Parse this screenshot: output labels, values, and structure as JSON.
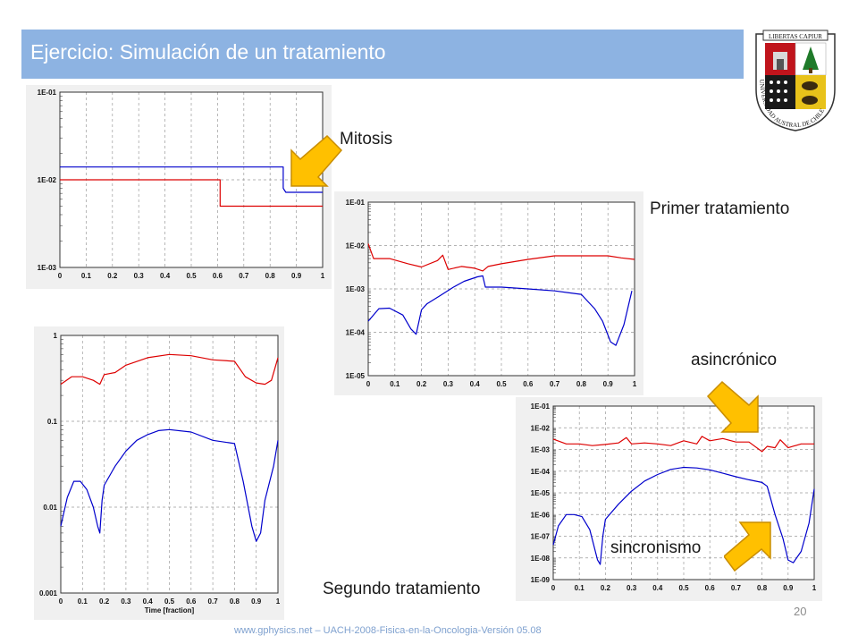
{
  "slide": {
    "title": "Ejercicio: Simulación de un tratamiento",
    "page_number": "20",
    "footer": "www.gphysics.net – UACH-2008-Fisica-en-la-Oncologia-Versión 05.08",
    "accent_color": "#8db3e2"
  },
  "crest": {
    "motto": "LIBERTAS CAPIUR",
    "ring_text": "UNIVERSIDAD AUSTRAL DE CHILE"
  },
  "labels": {
    "mitosis": "Mitosis",
    "primer": "Primer tratamiento",
    "asincronico": "asincrónico",
    "sincronismo": "sincronismo",
    "segundo": "Segundo tratamiento"
  },
  "arrows": {
    "color": "#ffc000"
  },
  "chart_data": [
    {
      "type": "line",
      "scale": "log",
      "ylim": [
        0.001,
        0.1
      ],
      "xlim": [
        0,
        1
      ],
      "y_ticks": [
        "1E-01",
        "1E-02",
        "1E-03"
      ],
      "x_ticks": [
        "0",
        "0.1",
        "0.2",
        "0.3",
        "0.4",
        "0.5",
        "0.6",
        "0.7",
        "0.8",
        "0.9",
        "1"
      ],
      "grid": true,
      "series": [
        {
          "color": "#0000cc",
          "x": [
            0,
            0.85,
            0.85,
            0.86,
            1.0
          ],
          "y": [
            0.014,
            0.014,
            0.008,
            0.0072,
            0.0072
          ]
        },
        {
          "color": "#dd0000",
          "x": [
            0,
            0.61,
            0.61,
            1.0
          ],
          "y": [
            0.01,
            0.01,
            0.005,
            0.005
          ]
        }
      ]
    },
    {
      "type": "line",
      "scale": "log",
      "ylim": [
        1e-05,
        0.1
      ],
      "xlim": [
        0,
        1
      ],
      "y_ticks": [
        "1E-01",
        "1E-02",
        "1E-03",
        "1E-04",
        "1E-05"
      ],
      "x_ticks": [
        "0",
        "0.1",
        "0.2",
        "0.3",
        "0.4",
        "0.5",
        "0.6",
        "0.7",
        "0.8",
        "0.9",
        "1"
      ],
      "grid": true,
      "series": [
        {
          "color": "#dd0000",
          "x": [
            0,
            0.02,
            0.08,
            0.15,
            0.2,
            0.26,
            0.28,
            0.3,
            0.35,
            0.4,
            0.43,
            0.45,
            0.5,
            0.6,
            0.7,
            0.8,
            0.9,
            0.95,
            1.0
          ],
          "y": [
            0.011,
            0.005,
            0.005,
            0.0038,
            0.0032,
            0.0045,
            0.006,
            0.0028,
            0.0033,
            0.003,
            0.0026,
            0.0033,
            0.0038,
            0.0048,
            0.0058,
            0.0058,
            0.0058,
            0.0052,
            0.0048
          ]
        },
        {
          "color": "#0000cc",
          "x": [
            0,
            0.04,
            0.08,
            0.13,
            0.16,
            0.18,
            0.2,
            0.22,
            0.27,
            0.32,
            0.36,
            0.41,
            0.43,
            0.44,
            0.5,
            0.6,
            0.7,
            0.8,
            0.85,
            0.88,
            0.91,
            0.93,
            0.96,
            0.99
          ],
          "y": [
            0.00018,
            0.00035,
            0.00036,
            0.00025,
            0.00012,
            9e-05,
            0.00033,
            0.00045,
            0.0007,
            0.0011,
            0.0015,
            0.0019,
            0.002,
            0.0011,
            0.0011,
            0.001,
            0.0009,
            0.00075,
            0.00035,
            0.00018,
            6e-05,
            5e-05,
            0.00015,
            0.0009
          ]
        }
      ]
    },
    {
      "type": "line",
      "scale": "log",
      "ylim": [
        0.001,
        1
      ],
      "xlim": [
        0,
        1
      ],
      "y_ticks": [
        "1",
        "0.1",
        "0.01",
        "0.001"
      ],
      "x_ticks": [
        "0",
        "0.1",
        "0.2",
        "0.3",
        "0.4",
        "0.5",
        "0.6",
        "0.7",
        "0.8",
        "0.9",
        "1"
      ],
      "xlabel": "Time [fraction]",
      "grid": true,
      "series": [
        {
          "color": "#dd0000",
          "x": [
            0,
            0.05,
            0.1,
            0.15,
            0.18,
            0.2,
            0.25,
            0.3,
            0.4,
            0.5,
            0.6,
            0.7,
            0.8,
            0.85,
            0.9,
            0.94,
            0.97,
            1.0
          ],
          "y": [
            0.27,
            0.33,
            0.33,
            0.3,
            0.27,
            0.35,
            0.37,
            0.45,
            0.55,
            0.6,
            0.58,
            0.52,
            0.5,
            0.33,
            0.28,
            0.27,
            0.3,
            0.55
          ]
        },
        {
          "color": "#0000cc",
          "x": [
            0,
            0.03,
            0.06,
            0.09,
            0.12,
            0.15,
            0.17,
            0.18,
            0.19,
            0.2,
            0.25,
            0.3,
            0.35,
            0.4,
            0.45,
            0.5,
            0.6,
            0.7,
            0.8,
            0.84,
            0.88,
            0.9,
            0.92,
            0.94,
            0.98,
            1.0
          ],
          "y": [
            0.006,
            0.013,
            0.02,
            0.02,
            0.016,
            0.01,
            0.006,
            0.005,
            0.012,
            0.018,
            0.03,
            0.045,
            0.06,
            0.07,
            0.078,
            0.08,
            0.075,
            0.06,
            0.055,
            0.02,
            0.006,
            0.004,
            0.005,
            0.012,
            0.03,
            0.06
          ]
        }
      ]
    },
    {
      "type": "line",
      "scale": "log",
      "ylim": [
        1e-09,
        0.1
      ],
      "xlim": [
        0,
        1
      ],
      "y_ticks": [
        "1E-01",
        "1E-02",
        "1E-03",
        "1E-04",
        "1E-05",
        "1E-06",
        "1E-07",
        "1E-08",
        "1E-09"
      ],
      "x_ticks": [
        "0",
        "0.1",
        "0.2",
        "0.3",
        "0.4",
        "0.5",
        "0.6",
        "0.7",
        "0.8",
        "0.9",
        "1"
      ],
      "grid": true,
      "series": [
        {
          "color": "#dd0000",
          "x": [
            0,
            0.05,
            0.1,
            0.15,
            0.2,
            0.25,
            0.28,
            0.3,
            0.35,
            0.4,
            0.45,
            0.5,
            0.55,
            0.57,
            0.6,
            0.65,
            0.7,
            0.75,
            0.8,
            0.82,
            0.85,
            0.87,
            0.9,
            0.95,
            1.0
          ],
          "y": [
            0.003,
            0.0018,
            0.0018,
            0.0015,
            0.0017,
            0.002,
            0.0035,
            0.0018,
            0.002,
            0.0018,
            0.0015,
            0.0025,
            0.0018,
            0.004,
            0.0025,
            0.0032,
            0.0022,
            0.0022,
            0.0008,
            0.0014,
            0.0012,
            0.0028,
            0.0012,
            0.0018,
            0.0018
          ]
        },
        {
          "color": "#0000cc",
          "x": [
            0,
            0.02,
            0.05,
            0.08,
            0.11,
            0.14,
            0.17,
            0.18,
            0.19,
            0.2,
            0.25,
            0.3,
            0.35,
            0.4,
            0.45,
            0.5,
            0.55,
            0.6,
            0.65,
            0.7,
            0.75,
            0.8,
            0.82,
            0.85,
            0.88,
            0.9,
            0.92,
            0.95,
            0.98,
            1.0
          ],
          "y": [
            4e-08,
            3e-07,
            1e-06,
            1e-06,
            8e-07,
            2e-07,
            8e-09,
            5e-09,
            1e-07,
            6e-07,
            3e-06,
            1.2e-05,
            3.5e-05,
            7e-05,
            0.00012,
            0.00015,
            0.00014,
            0.000115,
            8e-05,
            5.5e-05,
            4e-05,
            3e-05,
            2e-05,
            1e-06,
            8e-08,
            8e-09,
            6e-09,
            2e-08,
            4e-07,
            1.5e-05
          ]
        }
      ]
    }
  ]
}
